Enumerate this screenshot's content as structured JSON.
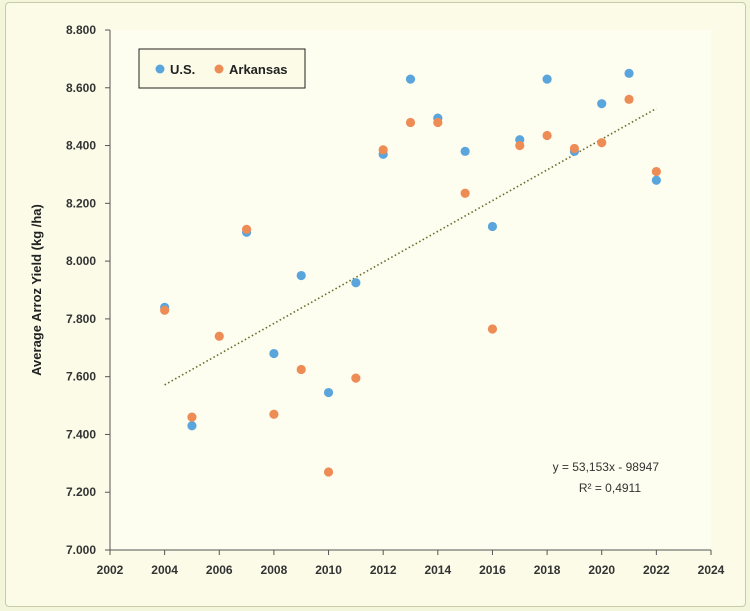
{
  "chart_data": {
    "type": "scatter",
    "title": "",
    "xlabel": "",
    "ylabel": "Average Arroz Yield (kg /ha)",
    "xlim": [
      2002,
      2024
    ],
    "ylim": [
      7000,
      8800
    ],
    "x_ticks": [
      2002,
      2004,
      2006,
      2008,
      2010,
      2012,
      2014,
      2016,
      2018,
      2020,
      2022,
      2024
    ],
    "y_ticks": [
      7000,
      7200,
      7400,
      7600,
      7800,
      8000,
      8200,
      8400,
      8600,
      8800
    ],
    "x_tick_labels": [
      "2002",
      "2004",
      "2006",
      "2008",
      "2010",
      "2012",
      "2014",
      "2016",
      "2018",
      "2020",
      "2022",
      "2024"
    ],
    "y_tick_labels": [
      "7.000",
      "7.200",
      "7.400",
      "7.600",
      "7.800",
      "8.000",
      "8.200",
      "8.400",
      "8.600",
      "8.800"
    ],
    "grid": false,
    "legend_position": "top-left",
    "series": [
      {
        "name": "U.S.",
        "color": "#5aa6dc",
        "points": [
          {
            "x": 2004,
            "y": 7840
          },
          {
            "x": 2005,
            "y": 7430
          },
          {
            "x": 2007,
            "y": 8100
          },
          {
            "x": 2008,
            "y": 7680
          },
          {
            "x": 2009,
            "y": 7950
          },
          {
            "x": 2010,
            "y": 7545
          },
          {
            "x": 2011,
            "y": 7925
          },
          {
            "x": 2012,
            "y": 8370
          },
          {
            "x": 2013,
            "y": 8630
          },
          {
            "x": 2014,
            "y": 8495
          },
          {
            "x": 2015,
            "y": 8380
          },
          {
            "x": 2016,
            "y": 8120
          },
          {
            "x": 2017,
            "y": 8420
          },
          {
            "x": 2018,
            "y": 8630
          },
          {
            "x": 2019,
            "y": 8380
          },
          {
            "x": 2020,
            "y": 8545
          },
          {
            "x": 2021,
            "y": 8650
          },
          {
            "x": 2022,
            "y": 8280
          }
        ]
      },
      {
        "name": "Arkansas",
        "color": "#ee8c56",
        "points": [
          {
            "x": 2004,
            "y": 7830
          },
          {
            "x": 2005,
            "y": 7460
          },
          {
            "x": 2006,
            "y": 7740
          },
          {
            "x": 2007,
            "y": 8110
          },
          {
            "x": 2008,
            "y": 7470
          },
          {
            "x": 2009,
            "y": 7625
          },
          {
            "x": 2010,
            "y": 7270
          },
          {
            "x": 2011,
            "y": 7595
          },
          {
            "x": 2012,
            "y": 8385
          },
          {
            "x": 2013,
            "y": 8480
          },
          {
            "x": 2014,
            "y": 8480
          },
          {
            "x": 2015,
            "y": 8235
          },
          {
            "x": 2016,
            "y": 7765
          },
          {
            "x": 2017,
            "y": 8400
          },
          {
            "x": 2018,
            "y": 8435
          },
          {
            "x": 2019,
            "y": 8390
          },
          {
            "x": 2020,
            "y": 8410
          },
          {
            "x": 2021,
            "y": 8560
          },
          {
            "x": 2022,
            "y": 8310
          }
        ]
      }
    ],
    "trendline": {
      "style": "dotted",
      "color": "#6a6a28",
      "x_start": 2004,
      "x_end": 2022,
      "slope": 53.153,
      "intercept": -98947,
      "equation_label": "y = 53,153x - 98947",
      "r2_label": "R² = 0,4911",
      "label_position": "bottom-right"
    }
  }
}
